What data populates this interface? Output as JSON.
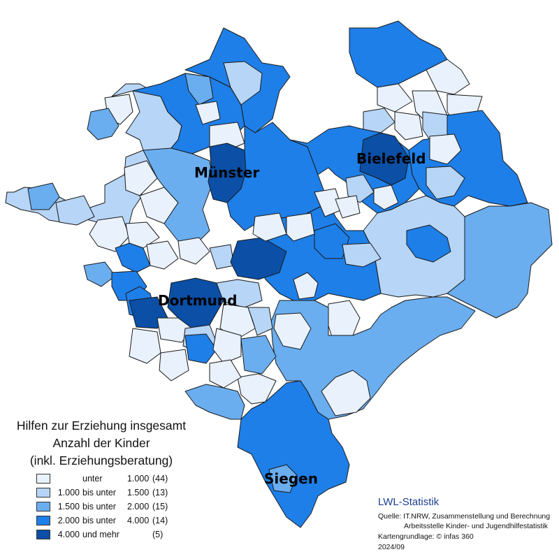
{
  "colors": {
    "c1": "#e8f1fc",
    "c2": "#b7d5f6",
    "c3": "#6aaef0",
    "c4": "#1e7fe8",
    "c5": "#0b4fa6"
  },
  "city_labels": [
    "Münster",
    "Bielefeld",
    "Dortmund",
    "Siegen"
  ],
  "legend": {
    "title_lines": [
      "Hilfen zur Erziehung insgesamt",
      "Anzahl der Kinder",
      "(inkl. Erziehungsberatung)"
    ],
    "items": [
      {
        "a": "",
        "op": "unter",
        "b": "1.000",
        "count": "(44)",
        "color": "#e8f1fc"
      },
      {
        "a": "1.000",
        "op": "bis unter",
        "b": "1.500",
        "count": "(13)",
        "color": "#b7d5f6"
      },
      {
        "a": "1.500",
        "op": "bis unter",
        "b": "2.000",
        "count": "(15)",
        "color": "#6aaef0"
      },
      {
        "a": "2.000",
        "op": "bis unter",
        "b": "4.000",
        "count": "(14)",
        "color": "#1e7fe8"
      },
      {
        "a": "4.000",
        "op": "und mehr",
        "b": "",
        "count": "(5)",
        "color": "#0b4fa6"
      }
    ]
  },
  "credits": {
    "brand": "LWL-Statistik",
    "source_line1": "Quelle: IT.NRW,  Zusammenstellung und Berechnung",
    "source_line2": "Arbeitsstelle Kinder- und Jugendhilfestatistik",
    "basemap": "Kartengrundlage: © infas 360",
    "date": "2024/09"
  }
}
